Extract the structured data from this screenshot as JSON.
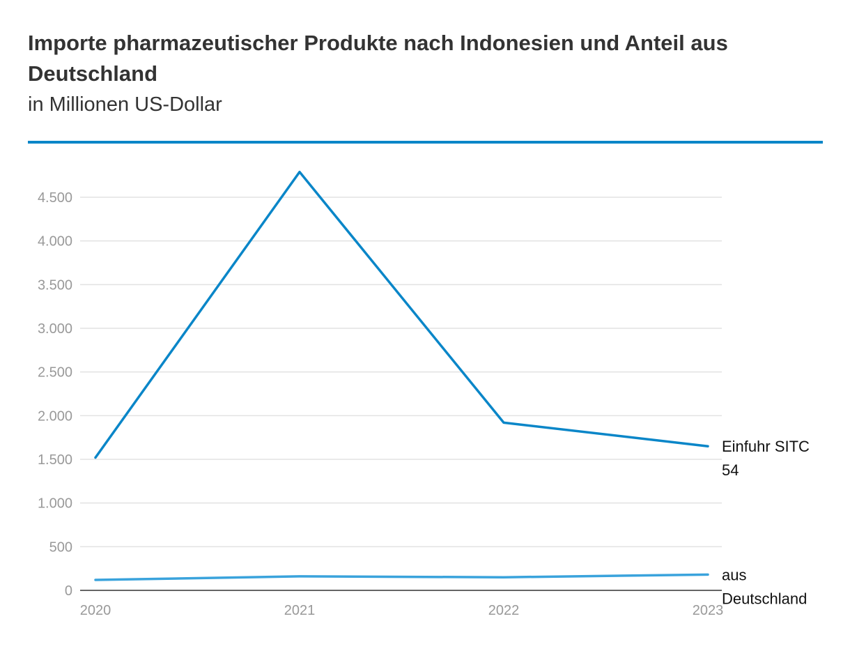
{
  "header": {
    "title": "Importe pharmazeutischer Produkte nach Indonesien und Anteil aus Deutschland",
    "subtitle": "in Millionen US-Dollar"
  },
  "colors": {
    "accent": "#0a86c8",
    "series_main": "#0a86c8",
    "series_de": "#3aa3dc",
    "grid": "#e2e2e2",
    "axis": "#333333"
  },
  "chart_data": {
    "type": "line",
    "title": "Importe pharmazeutischer Produkte nach Indonesien und Anteil aus Deutschland",
    "subtitle": "in Millionen US-Dollar",
    "x": [
      "2020",
      "2021",
      "2022",
      "2023"
    ],
    "ylim": [
      0,
      4500
    ],
    "yticks": [
      0,
      500,
      1000,
      1500,
      2000,
      2500,
      3000,
      3500,
      4000,
      4500
    ],
    "ytick_labels": [
      "0",
      "500",
      "1.000",
      "1.500",
      "2.000",
      "2.500",
      "3.000",
      "3.500",
      "4.000",
      "4.500"
    ],
    "grid": true,
    "series": [
      {
        "name": "Einfuhr SITC 54",
        "label_lines": [
          "Einfuhr SITC",
          "54"
        ],
        "values": [
          1520,
          4790,
          1920,
          1650
        ],
        "color": "#0a86c8"
      },
      {
        "name": "aus Deutschland",
        "label_lines": [
          "aus",
          "Deutschland"
        ],
        "values": [
          120,
          160,
          150,
          180
        ],
        "color": "#3aa3dc"
      }
    ]
  }
}
